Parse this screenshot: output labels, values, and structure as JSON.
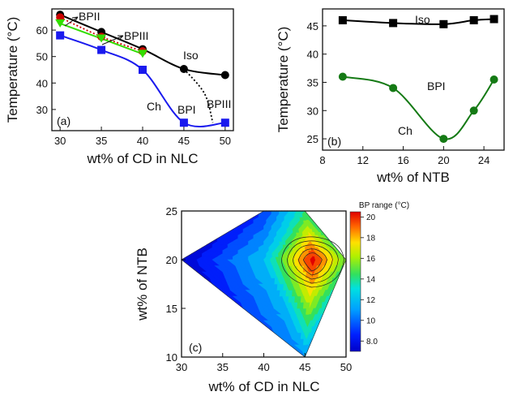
{
  "chart_data": [
    {
      "type": "line",
      "panel_label": "(a)",
      "xlabel": "wt% of CD in NLC",
      "ylabel": "Temperature (°C)",
      "xlim": [
        29,
        51
      ],
      "ylim": [
        22,
        68
      ],
      "x_ticks": [
        30,
        35,
        40,
        45,
        50
      ],
      "y_ticks": [
        30,
        40,
        50,
        60
      ],
      "grid": false,
      "series": [
        {
          "color": "#000000",
          "marker": "circle",
          "style": "solid",
          "points": [
            [
              30,
              65.8
            ],
            [
              35,
              59.3
            ],
            [
              40,
              52.8
            ],
            [
              45,
              45.3
            ],
            [
              50,
              43.0
            ]
          ]
        },
        {
          "color": "#cc0000",
          "marker": "circle",
          "style": "dotted",
          "points": [
            [
              30,
              64.8
            ],
            [
              35,
              57.5
            ],
            [
              40,
              52.0
            ]
          ]
        },
        {
          "color": "#33dd00",
          "marker": "triangle-down",
          "style": "solid",
          "points": [
            [
              30,
              62.5
            ],
            [
              35,
              56.8
            ],
            [
              40,
              51.0
            ]
          ]
        },
        {
          "color": "#1a1aee",
          "marker": "square",
          "style": "solid",
          "points": [
            [
              30,
              58.0
            ],
            [
              35,
              52.5
            ],
            [
              40,
              45.0
            ],
            [
              45,
              25.0
            ],
            [
              50,
              25.0
            ]
          ]
        },
        {
          "color": "#000000",
          "marker": "none",
          "style": "dotted",
          "points": [
            [
              45,
              45.3
            ],
            [
              47.5,
              36.0
            ],
            [
              48.5,
              25.0
            ]
          ]
        }
      ],
      "annotations": [
        "BPII",
        "BPIII",
        "Iso",
        "BPI",
        "BPIII",
        "Ch"
      ]
    },
    {
      "type": "line",
      "panel_label": "(b)",
      "xlabel": "wt% of NTB",
      "ylabel": "Temperature (°C)",
      "xlim": [
        8,
        26
      ],
      "ylim": [
        23,
        48
      ],
      "x_ticks": [
        8,
        12,
        16,
        20,
        24
      ],
      "y_ticks": [
        25,
        30,
        35,
        40,
        45
      ],
      "grid": false,
      "series": [
        {
          "color": "#000000",
          "marker": "square",
          "style": "solid",
          "points": [
            [
              10,
              46.0
            ],
            [
              15,
              45.5
            ],
            [
              20,
              45.3
            ],
            [
              23,
              46.0
            ],
            [
              25,
              46.2
            ]
          ]
        },
        {
          "color": "#157a15",
          "marker": "circle",
          "style": "solid",
          "points": [
            [
              10,
              36.0
            ],
            [
              15,
              34.0
            ],
            [
              20,
              25.0
            ],
            [
              23,
              30.0
            ],
            [
              25,
              35.5
            ]
          ]
        }
      ],
      "annotations": [
        "Iso",
        "BPI",
        "Ch"
      ]
    },
    {
      "type": "heatmap",
      "panel_label": "(c)",
      "xlabel": "wt% of CD in NLC",
      "ylabel": "wt% of NTB",
      "xlim": [
        30,
        50
      ],
      "ylim": [
        10,
        25
      ],
      "x_ticks": [
        30,
        35,
        40,
        45,
        50
      ],
      "y_ticks": [
        10,
        15,
        20,
        25
      ],
      "colorbar_title": "BP range (°C)",
      "colorbar_ticks": [
        8.0,
        10,
        12,
        14,
        16,
        18,
        20
      ],
      "colorbar_range": [
        7.0,
        20.5
      ],
      "vertices": [
        [
          30,
          20,
          7.0
        ],
        [
          40,
          25,
          9.0
        ],
        [
          45,
          25,
          14.0
        ],
        [
          50,
          20,
          15.0
        ],
        [
          45,
          10,
          11.0
        ],
        [
          40,
          20,
          12.0
        ],
        [
          46,
          20,
          20.5
        ]
      ],
      "triangles": [
        [
          0,
          1,
          5
        ],
        [
          1,
          2,
          5
        ],
        [
          0,
          5,
          4
        ],
        [
          5,
          2,
          6
        ],
        [
          2,
          3,
          6
        ],
        [
          3,
          4,
          6
        ],
        [
          4,
          5,
          6
        ]
      ]
    }
  ]
}
